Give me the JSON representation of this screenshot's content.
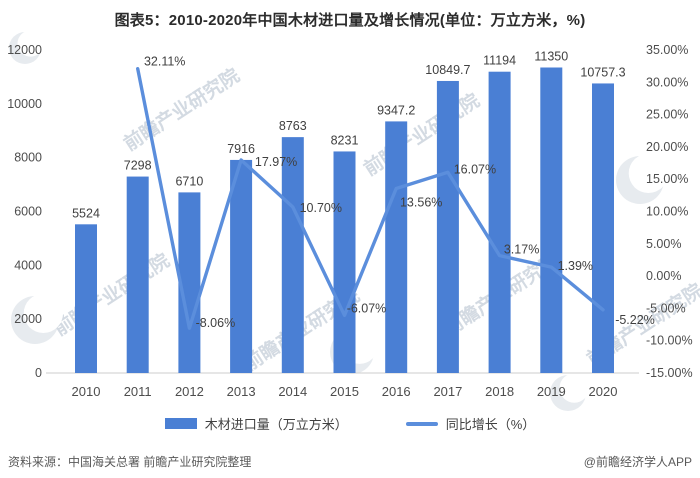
{
  "title": "图表5：2010-2020年中国木材进口量及增长情况(单位：万立方米，%)",
  "chart_data": {
    "type": "combo_bar_line",
    "title": "图表5：2010-2020年中国木材进口量及增长情况(单位：万立方米，%)",
    "categories": [
      "2010",
      "2011",
      "2012",
      "2013",
      "2014",
      "2015",
      "2016",
      "2017",
      "2018",
      "2019",
      "2020"
    ],
    "series": [
      {
        "name": "木材进口量（万立方米）",
        "type": "bar",
        "axis": "left",
        "values": [
          5524,
          7298,
          6710,
          7916,
          8763,
          8231,
          9347.2,
          10849.7,
          11194,
          11350,
          10757.3
        ],
        "labels": [
          "5524",
          "7298",
          "6710",
          "7916",
          "8763",
          "8231",
          "9347.2",
          "10849.7",
          "11194",
          "11350",
          "10757.3"
        ]
      },
      {
        "name": "同比增长（%）",
        "type": "line",
        "axis": "right",
        "values": [
          null,
          32.11,
          -8.06,
          17.97,
          10.7,
          -6.07,
          13.56,
          16.07,
          3.17,
          1.39,
          -5.22
        ],
        "labels": [
          "",
          "32.11%",
          "-8.06%",
          "17.97%",
          "10.70%",
          "-6.07%",
          "13.56%",
          "16.07%",
          "3.17%",
          "1.39%",
          "-5.22%"
        ]
      }
    ],
    "left_axis": {
      "min": 0,
      "max": 12000,
      "step": 2000,
      "tick_labels": [
        "0",
        "2000",
        "4000",
        "6000",
        "8000",
        "10000",
        "12000"
      ]
    },
    "right_axis": {
      "min": -15,
      "max": 35,
      "step": 5,
      "tick_labels": [
        "-15.00%",
        "-10.00%",
        "-5.00%",
        "0.00%",
        "5.00%",
        "10.00%",
        "15.00%",
        "20.00%",
        "25.00%",
        "30.00%",
        "35.00%"
      ]
    },
    "grid": false,
    "legend_position": "bottom"
  },
  "legend": {
    "bar_label": "木材进口量（万立方米）",
    "line_label": "同比增长（%）"
  },
  "footer": {
    "source": "资料来源：中国海关总署 前瞻产业研究院整理",
    "credit": "@前瞻经济学人APP"
  },
  "watermark": {
    "text": "前瞻产业研究院",
    "logo": "前瞻logo"
  },
  "colors": {
    "bar": "#4A7FD4",
    "line": "#5B8EDC",
    "label_text": "#404040",
    "axis_text": "#4d4d4d",
    "axis_line": "#d6d6d6",
    "title_text": "#2b2b2b",
    "footer_text": "#595959",
    "watermark": "#d3dae2"
  }
}
